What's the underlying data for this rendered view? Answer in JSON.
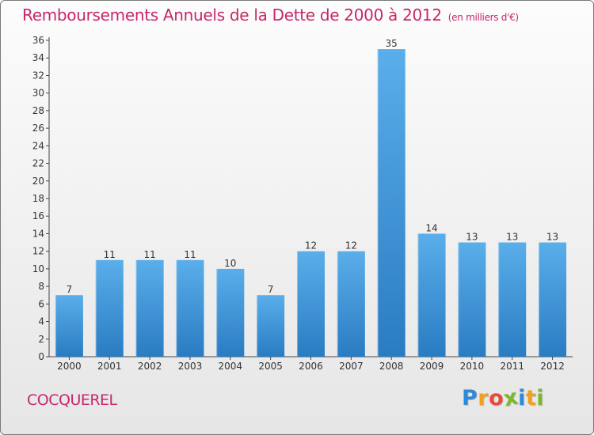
{
  "chart_data": {
    "type": "bar",
    "title": "Remboursements Annuels de la Dette de 2000 à 2012",
    "subtitle": "(en milliers d'€)",
    "categories": [
      "2000",
      "2001",
      "2002",
      "2003",
      "2004",
      "2005",
      "2006",
      "2007",
      "2008",
      "2009",
      "2010",
      "2011",
      "2012"
    ],
    "values": [
      7,
      11,
      11,
      11,
      10,
      7,
      12,
      12,
      35,
      14,
      13,
      13,
      13
    ],
    "ylim": [
      0,
      36
    ],
    "yticks": [
      0,
      2,
      4,
      6,
      8,
      10,
      12,
      14,
      16,
      18,
      20,
      22,
      24,
      26,
      28,
      30,
      32,
      34,
      36
    ],
    "grid": false,
    "colors": {
      "bar_top": "#5aaeea",
      "bar_bottom": "#2a7cc2",
      "text": "#c6286a"
    }
  },
  "place_name": "COCQUEREL",
  "logo": {
    "text": "Proxiti",
    "letter_colors": [
      "#2e8ad8",
      "#f0a020",
      "#e84a3a",
      "#7ab82a",
      "#2e8ad8",
      "#f0a020",
      "#7ab82a"
    ]
  }
}
